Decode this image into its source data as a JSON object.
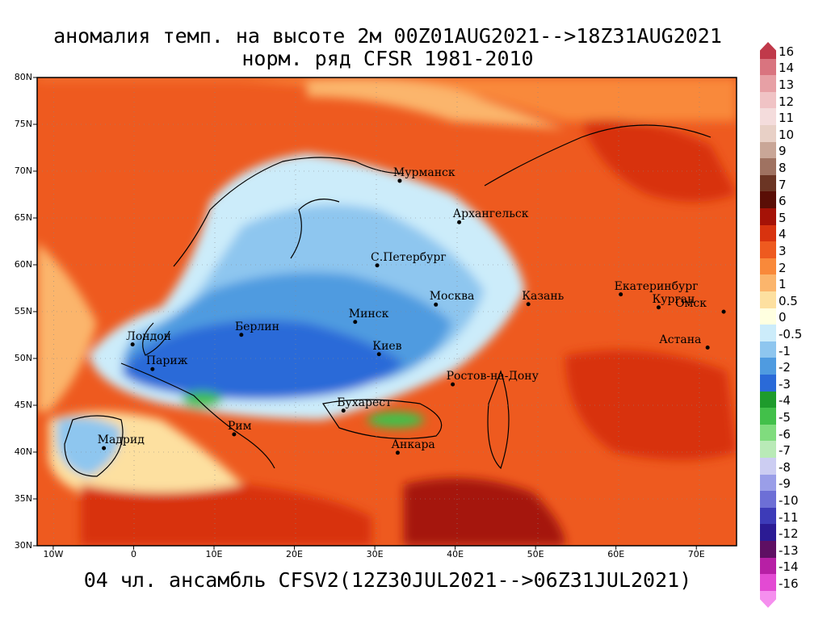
{
  "title_line1": "аномалия темп. на высоте 2м 00Z01AUG2021-->18Z31AUG2021",
  "title_line2": "норм. ряд CFSR 1981-2010",
  "footer": "04 чл. ансамбль CFSV2(12Z30JUL2021-->06Z31JUL2021)",
  "lat_labels": [
    "80N",
    "75N",
    "70N",
    "65N",
    "60N",
    "55N",
    "50N",
    "45N",
    "40N",
    "35N",
    "30N"
  ],
  "lon_labels": [
    "10W",
    "0",
    "10E",
    "20E",
    "30E",
    "40E",
    "50E",
    "60E",
    "70E"
  ],
  "cities": [
    {
      "name": "Мурманск",
      "lon": 33.1,
      "lat": 68.97
    },
    {
      "name": "Архангельск",
      "lon": 40.5,
      "lat": 64.55
    },
    {
      "name": "С.Петербург",
      "lon": 30.3,
      "lat": 59.94
    },
    {
      "name": "Москва",
      "lon": 37.6,
      "lat": 55.75
    },
    {
      "name": "Казань",
      "lon": 49.1,
      "lat": 55.8
    },
    {
      "name": "Екатеринбург",
      "lon": 60.6,
      "lat": 56.84
    },
    {
      "name": "Курган",
      "lon": 65.3,
      "lat": 55.45
    },
    {
      "name": "Омск",
      "lon": 73.4,
      "lat": 54.99
    },
    {
      "name": "Астана",
      "lon": 71.4,
      "lat": 51.16
    },
    {
      "name": "Минск",
      "lon": 27.56,
      "lat": 53.9
    },
    {
      "name": "Берлин",
      "lon": 13.4,
      "lat": 52.52
    },
    {
      "name": "Лондон",
      "lon": -0.13,
      "lat": 51.5
    },
    {
      "name": "Париж",
      "lon": 2.35,
      "lat": 48.86
    },
    {
      "name": "Киев",
      "lon": 30.52,
      "lat": 50.45
    },
    {
      "name": "Ростов-на-Дону",
      "lon": 39.7,
      "lat": 47.23
    },
    {
      "name": "Бухарест",
      "lon": 26.1,
      "lat": 44.43
    },
    {
      "name": "Рим",
      "lon": 12.5,
      "lat": 41.9
    },
    {
      "name": "Мадрид",
      "lon": -3.7,
      "lat": 40.42
    },
    {
      "name": "Анкара",
      "lon": 32.85,
      "lat": 39.93
    }
  ],
  "colorbar": {
    "labels": [
      "16",
      "14",
      "13",
      "12",
      "11",
      "10",
      "9",
      "8",
      "7",
      "6",
      "5",
      "4",
      "3",
      "2",
      "1",
      "0.5",
      "0",
      "-0.5",
      "-1",
      "-2",
      "-3",
      "-4",
      "-5",
      "-6",
      "-7",
      "-8",
      "-9",
      "-10",
      "-11",
      "-12",
      "-13",
      "-14",
      "-16"
    ],
    "colors": [
      "#c0394a",
      "#d9747f",
      "#e7a0a5",
      "#f0c3c5",
      "#f4dcdc",
      "#e8d0c6",
      "#c9a697",
      "#9f7261",
      "#6b3524",
      "#5a0e06",
      "#a51207",
      "#d8330f",
      "#ee5a1f",
      "#f9893a",
      "#fbb56c",
      "#fde0a0",
      "#ffffe0",
      "#ccecfa",
      "#8ec6ef",
      "#4f9be0",
      "#2a6ad8",
      "#1e9b2c",
      "#42c04a",
      "#80dc7e",
      "#b9eab7",
      "#cccdf2",
      "#9a9ee8",
      "#6d6fd6",
      "#3d3bb8",
      "#2b1b94",
      "#5e0f63",
      "#b71fa5",
      "#e34ad3",
      "#f58fee"
    ]
  },
  "colors": {
    "warm_strong": "#ee5a1f",
    "warm": "#f9893a",
    "warm_light": "#fbb56c",
    "pale": "#fde0a0",
    "neutral": "#ffffe0",
    "cool_light": "#ccecfa",
    "cool": "#8ec6ef",
    "cool_mid": "#4f9be0",
    "cool_strong": "#2a6ad8",
    "hot": "#d8330f",
    "very_hot": "#a51207",
    "green": "#1e9b2c",
    "green_light": "#42c04a"
  }
}
